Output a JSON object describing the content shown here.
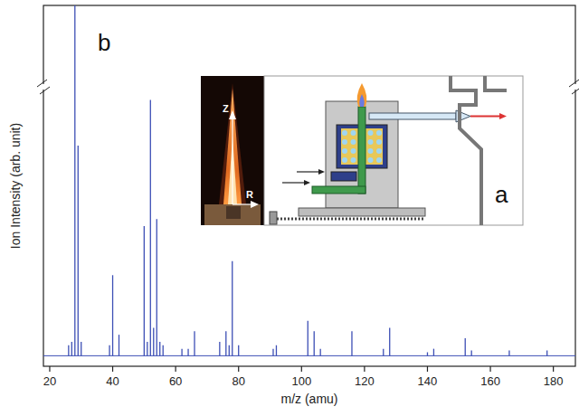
{
  "chart_data": {
    "type": "stem",
    "x_label": "m/z (amu)",
    "y_label": "Ion Intensity (arb. unit)",
    "x": [
      26,
      27,
      28,
      29,
      30,
      39,
      40,
      42,
      50,
      51,
      52,
      53,
      54,
      55,
      56,
      62,
      64,
      66,
      74,
      76,
      77,
      78,
      80,
      91,
      92,
      102,
      104,
      106,
      116,
      126,
      128,
      140,
      142,
      152,
      154,
      166,
      178
    ],
    "values": [
      3,
      4,
      100,
      60,
      4,
      3,
      23,
      6,
      37,
      4,
      73,
      8,
      39,
      4,
      3,
      2,
      2,
      7,
      4,
      7,
      3,
      27,
      3,
      2,
      3,
      10,
      7,
      2,
      7,
      2,
      8,
      1,
      2,
      5,
      1.5,
      1.5,
      1.5
    ],
    "color": "#3d4fb5",
    "xlim": [
      18,
      187
    ],
    "ylim": [
      -3,
      100
    ],
    "xticks": [
      20,
      40,
      60,
      80,
      100,
      120,
      140,
      160,
      180
    ],
    "tick_labels": "x",
    "panel_label": "b",
    "inset": {
      "panel_label": "a",
      "photo_axis_labels": [
        "Z",
        "R"
      ]
    }
  }
}
